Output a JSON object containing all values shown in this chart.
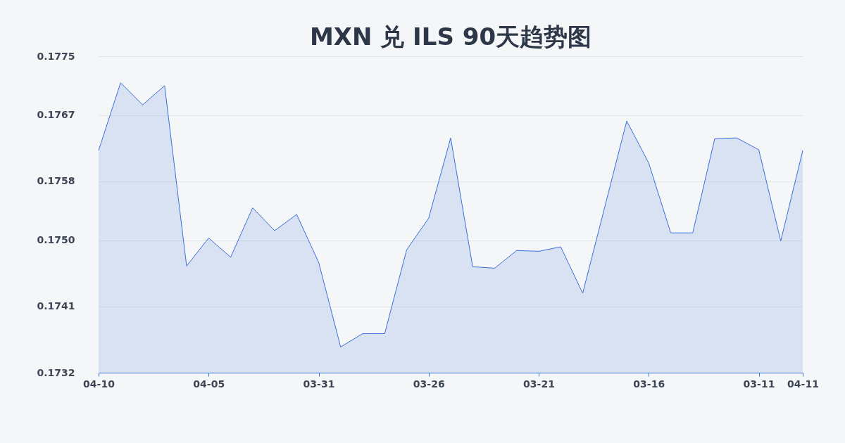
{
  "chart_data": {
    "type": "area",
    "title": "MXN 兑 ILS 90天趋势图",
    "categories": [
      "04-10",
      null,
      null,
      null,
      null,
      "04-05",
      null,
      null,
      null,
      null,
      "03-31",
      null,
      null,
      null,
      null,
      "03-26",
      null,
      null,
      null,
      null,
      "03-21",
      null,
      null,
      null,
      null,
      "03-16",
      null,
      null,
      null,
      null,
      "03-11",
      null,
      "04-11"
    ],
    "series": [
      {
        "color": "#3a6fd8",
        "values": [
          0.17622,
          0.17714,
          0.17684,
          0.1771,
          0.17465,
          0.17503,
          0.17477,
          0.17544,
          0.17513,
          0.17535,
          0.1747,
          0.17355,
          0.17373,
          0.17373,
          0.17487,
          0.1753,
          0.17639,
          0.17464,
          0.17462,
          0.17486,
          0.17485,
          0.17491,
          0.17428,
          0.17545,
          0.17662,
          0.17605,
          0.1751,
          0.1751,
          0.17638,
          0.17639,
          0.17623,
          0.17499,
          0.17622
        ]
      }
    ],
    "ylim": [
      0.1732,
      0.1775
    ],
    "yticks": [
      0.1732,
      0.1741,
      {
        "value": 0.175,
        "label": "0.1750"
      },
      0.1758,
      0.1767,
      0.1775
    ],
    "grid": "y",
    "legend": false,
    "marker": "none",
    "line_style": "solid"
  }
}
